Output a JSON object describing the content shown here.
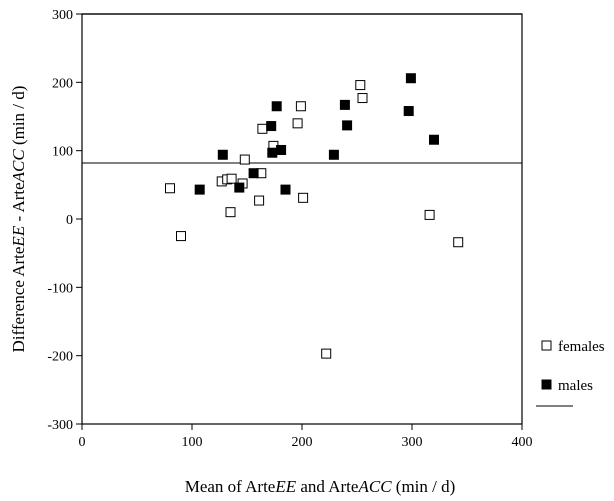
{
  "chart_data": {
    "type": "scatter",
    "title": "",
    "xlabel": [
      "Mean of Arte",
      "EE",
      " and Arte",
      "ACC",
      "  (min / d)"
    ],
    "ylabel": [
      "Difference Arte",
      "EE",
      "  - Arte",
      "ACC",
      "  (min / d)"
    ],
    "xlim": [
      0,
      400
    ],
    "ylim": [
      -300,
      300
    ],
    "xticks": [
      "0",
      "100",
      "200",
      "300",
      "400"
    ],
    "yticks": [
      "300",
      "200",
      "100",
      "0",
      "-100",
      "-200",
      "-300"
    ],
    "grid": false,
    "legend_position": "right",
    "reference_line": {
      "y": 82
    },
    "series": [
      {
        "name": "females",
        "marker": "open-square",
        "points": [
          [
            80,
            45
          ],
          [
            90,
            -25
          ],
          [
            127,
            55
          ],
          [
            132,
            58
          ],
          [
            135,
            10
          ],
          [
            136,
            59
          ],
          [
            146,
            52
          ],
          [
            148,
            87
          ],
          [
            161,
            27
          ],
          [
            163,
            67
          ],
          [
            164,
            132
          ],
          [
            174,
            107
          ],
          [
            196,
            140
          ],
          [
            199,
            165
          ],
          [
            201,
            31
          ],
          [
            222,
            -197
          ],
          [
            253,
            196
          ],
          [
            255,
            177
          ],
          [
            316,
            6
          ],
          [
            342,
            -34
          ]
        ]
      },
      {
        "name": "males",
        "marker": "filled-square",
        "points": [
          [
            128,
            94
          ],
          [
            107,
            43
          ],
          [
            143,
            46
          ],
          [
            156,
            67
          ],
          [
            172,
            136
          ],
          [
            173,
            97
          ],
          [
            177,
            165
          ],
          [
            181,
            101
          ],
          [
            185,
            43
          ],
          [
            229,
            94
          ],
          [
            239,
            167
          ],
          [
            241,
            137
          ],
          [
            297,
            158
          ],
          [
            299,
            206
          ],
          [
            320,
            116
          ]
        ]
      }
    ],
    "legend": [
      {
        "label": "females",
        "symbol": "open-square"
      },
      {
        "label": "males",
        "symbol": "filled-square"
      },
      {
        "label": "",
        "symbol": "line"
      }
    ]
  }
}
